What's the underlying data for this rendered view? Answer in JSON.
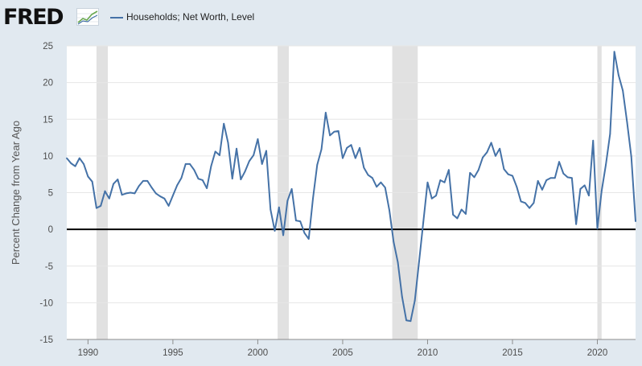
{
  "header": {
    "logo_text": "FRED",
    "logo_icon": "fred-line-graph-icon",
    "legend_label": "Households; Net Worth, Level"
  },
  "colors": {
    "background": "#e1e9f0",
    "plot_background": "#ffffff",
    "series": "#4572a7",
    "recession": "#e1e1e1",
    "zero_line": "#000000"
  },
  "chart_data": {
    "type": "line",
    "title": "",
    "xlabel": "",
    "ylabel": "Percent Change from Year Ago",
    "xlim": [
      1988.75,
      2022.25
    ],
    "ylim": [
      -15,
      25
    ],
    "yticks": [
      -15,
      -10,
      -5,
      0,
      5,
      10,
      15,
      20,
      25
    ],
    "xticks": [
      1990,
      1995,
      2000,
      2005,
      2010,
      2015,
      2020
    ],
    "grid": "horizontal",
    "legend_position": "top-left",
    "reference_line": 0,
    "recessions": [
      [
        1990.5,
        1991.17
      ],
      [
        2001.17,
        2001.83
      ],
      [
        2007.92,
        2009.42
      ],
      [
        2020.0,
        2020.25
      ]
    ],
    "series": [
      {
        "name": "Households; Net Worth, Level",
        "x": [
          1988.75,
          1989.0,
          1989.25,
          1989.5,
          1989.75,
          1990.0,
          1990.25,
          1990.5,
          1990.75,
          1991.0,
          1991.25,
          1991.5,
          1991.75,
          1992.0,
          1992.25,
          1992.5,
          1992.75,
          1993.0,
          1993.25,
          1993.5,
          1993.75,
          1994.0,
          1994.25,
          1994.5,
          1994.75,
          1995.0,
          1995.25,
          1995.5,
          1995.75,
          1996.0,
          1996.25,
          1996.5,
          1996.75,
          1997.0,
          1997.25,
          1997.5,
          1997.75,
          1998.0,
          1998.25,
          1998.5,
          1998.75,
          1999.0,
          1999.25,
          1999.5,
          1999.75,
          2000.0,
          2000.25,
          2000.5,
          2000.75,
          2001.0,
          2001.25,
          2001.5,
          2001.75,
          2002.0,
          2002.25,
          2002.5,
          2002.75,
          2003.0,
          2003.25,
          2003.5,
          2003.75,
          2004.0,
          2004.25,
          2004.5,
          2004.75,
          2005.0,
          2005.25,
          2005.5,
          2005.75,
          2006.0,
          2006.25,
          2006.5,
          2006.75,
          2007.0,
          2007.25,
          2007.5,
          2007.75,
          2008.0,
          2008.25,
          2008.5,
          2008.75,
          2009.0,
          2009.25,
          2009.5,
          2009.75,
          2010.0,
          2010.25,
          2010.5,
          2010.75,
          2011.0,
          2011.25,
          2011.5,
          2011.75,
          2012.0,
          2012.25,
          2012.5,
          2012.75,
          2013.0,
          2013.25,
          2013.5,
          2013.75,
          2014.0,
          2014.25,
          2014.5,
          2014.75,
          2015.0,
          2015.25,
          2015.5,
          2015.75,
          2016.0,
          2016.25,
          2016.5,
          2016.75,
          2017.0,
          2017.25,
          2017.5,
          2017.75,
          2018.0,
          2018.25,
          2018.5,
          2018.75,
          2019.0,
          2019.25,
          2019.5,
          2019.75,
          2020.0,
          2020.25,
          2020.5,
          2020.75,
          2021.0,
          2021.25,
          2021.5,
          2021.75,
          2022.0,
          2022.25
        ],
        "values": [
          9.7,
          9.0,
          8.6,
          9.7,
          8.9,
          7.2,
          6.5,
          2.9,
          3.2,
          5.2,
          4.2,
          6.2,
          6.8,
          4.7,
          4.9,
          5.0,
          4.9,
          5.9,
          6.6,
          6.6,
          5.7,
          4.9,
          4.5,
          4.2,
          3.2,
          4.6,
          6.0,
          7.0,
          8.9,
          8.9,
          8.1,
          6.9,
          6.7,
          5.6,
          8.6,
          10.6,
          10.1,
          14.4,
          11.8,
          6.9,
          11.0,
          6.8,
          7.9,
          9.3,
          10.1,
          12.3,
          8.9,
          10.7,
          2.7,
          -0.2,
          3.0,
          -0.8,
          3.9,
          5.5,
          1.2,
          1.1,
          -0.5,
          -1.3,
          4.2,
          8.8,
          10.9,
          15.9,
          12.8,
          13.3,
          13.4,
          9.7,
          11.1,
          11.5,
          9.7,
          11.1,
          8.4,
          7.4,
          7.0,
          5.8,
          6.4,
          5.7,
          2.6,
          -1.7,
          -4.5,
          -9.2,
          -12.4,
          -12.5,
          -9.7,
          -4.4,
          1.0,
          6.4,
          4.2,
          4.6,
          6.7,
          6.4,
          8.1,
          2.0,
          1.5,
          2.7,
          2.1,
          7.7,
          7.1,
          8.1,
          9.8,
          10.5,
          11.8,
          10.0,
          11.0,
          8.2,
          7.5,
          7.3,
          5.8,
          3.8,
          3.6,
          2.9,
          3.6,
          6.6,
          5.4,
          6.7,
          7.0,
          7.0,
          9.2,
          7.6,
          7.1,
          7.0,
          0.7,
          5.5,
          6.0,
          4.6,
          12.1,
          0.1,
          5.2,
          8.8,
          13.0,
          24.2,
          21.0,
          18.9,
          14.6,
          9.9,
          1.1
        ]
      }
    ]
  }
}
